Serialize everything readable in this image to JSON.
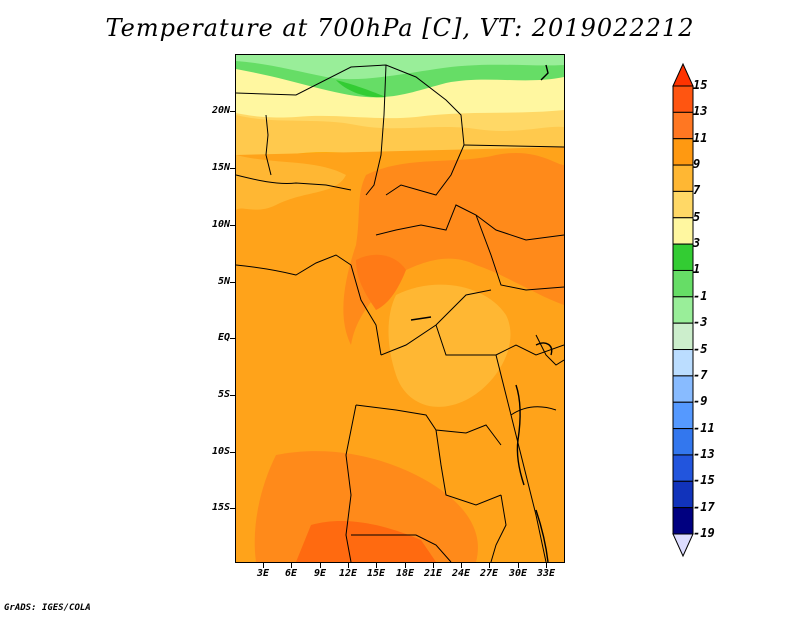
{
  "title": "Temperature at 700hPa [C], VT: 2019022212",
  "footer": "GrADS: IGES/COLA",
  "map": {
    "lat_labels": [
      "20N",
      "15N",
      "10N",
      "5N",
      "EQ",
      "5S",
      "10S",
      "15S"
    ],
    "lon_labels": [
      "3E",
      "6E",
      "9E",
      "12E",
      "15E",
      "18E",
      "21E",
      "24E",
      "27E",
      "30E",
      "33E"
    ]
  },
  "colorbar": {
    "labels": [
      "15",
      "13",
      "11",
      "9",
      "7",
      "5",
      "3",
      "1",
      "-1",
      "-3",
      "-5",
      "-7",
      "-9",
      "-11",
      "-13",
      "-15",
      "-17",
      "-19"
    ],
    "colors": [
      "#ff3300",
      "#ff5511",
      "#ff7722",
      "#ff9911",
      "#ffb733",
      "#ffd866",
      "#fff7a0",
      "#33cc33",
      "#66dd66",
      "#99ee99",
      "#cceecc",
      "#bbddff",
      "#88bbff",
      "#5599ff",
      "#3377ee",
      "#2255dd",
      "#1133bb",
      "#000080",
      "#ddddff"
    ]
  },
  "regions": {
    "sahara_north": "green band",
    "central_africa": "warm orange field"
  }
}
